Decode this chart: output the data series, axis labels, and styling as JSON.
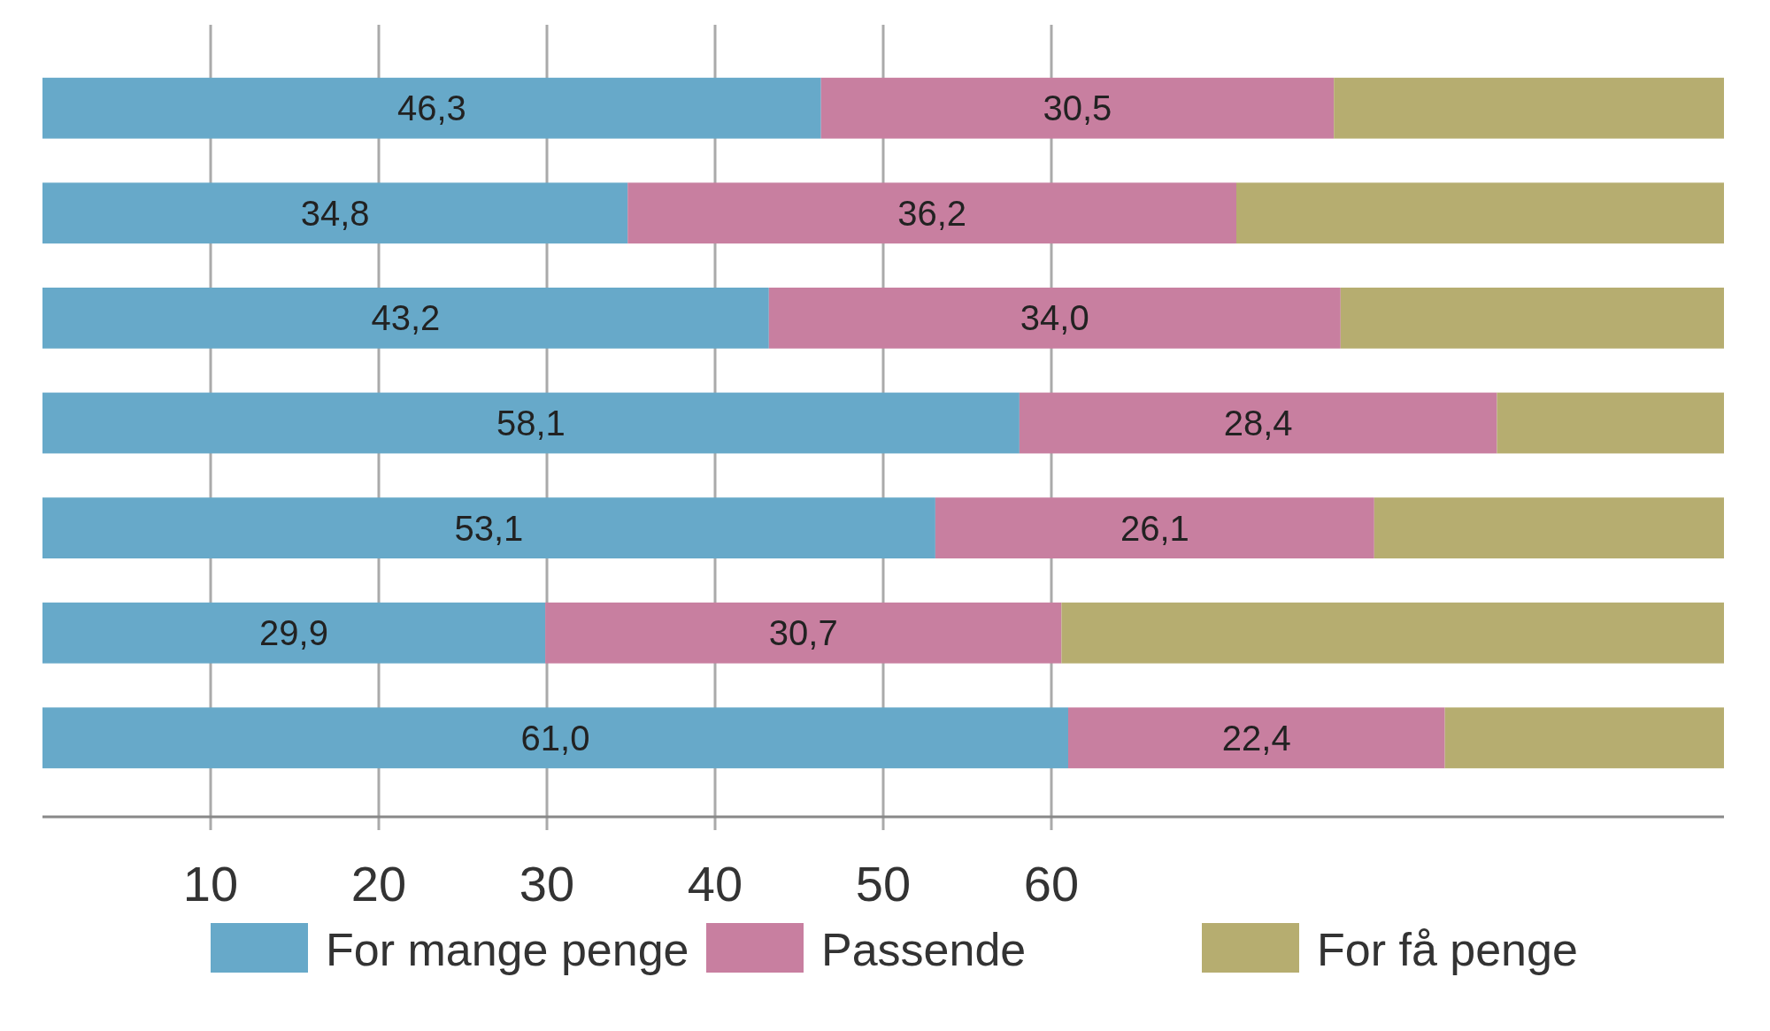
{
  "chart_data": {
    "type": "bar",
    "orientation": "horizontal",
    "stacked": true,
    "categories": [
      null,
      null,
      null,
      null,
      null,
      null,
      null
    ],
    "series": [
      {
        "name": "For mange penge",
        "color": "#67a9c9",
        "values": [
          46.3,
          34.8,
          43.2,
          58.1,
          53.1,
          29.9,
          61.0
        ],
        "value_labels": [
          "46,3",
          "34,8",
          "43,2",
          "58,1",
          "53,1",
          "29,9",
          "61,0"
        ]
      },
      {
        "name": "Passende",
        "color": "#c87fa0",
        "values": [
          30.5,
          36.2,
          34.0,
          28.4,
          26.1,
          30.7,
          22.4
        ],
        "value_labels": [
          "30,5",
          "36,2",
          "34,0",
          "28,4",
          "26,1",
          "30,7",
          "22,4"
        ]
      },
      {
        "name": "For få penge",
        "color": "#b6ad70",
        "values": [
          23.2,
          29.0,
          22.8,
          13.5,
          20.8,
          39.4,
          16.6
        ]
      }
    ],
    "xlim": [
      0,
      100
    ],
    "xticks": [
      10,
      20,
      30,
      40,
      50,
      60
    ],
    "grid": "x",
    "legend": "bottom"
  }
}
